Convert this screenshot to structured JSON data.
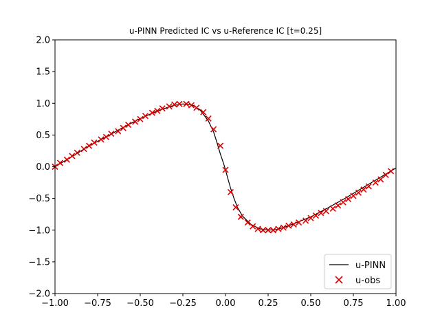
{
  "chart_data": {
    "type": "line",
    "title": "u-PINN Predicted IC vs u-Reference IC [t=0.25]",
    "xlabel": "",
    "ylabel": "",
    "xlim": [
      -1.0,
      1.0
    ],
    "ylim": [
      -2.0,
      2.0
    ],
    "x_ticks": [
      -1.0,
      -0.75,
      -0.5,
      -0.25,
      0.0,
      0.25,
      0.5,
      0.75,
      1.0
    ],
    "x_tick_labels": [
      "−1.00",
      "−0.75",
      "−0.50",
      "−0.25",
      "0.00",
      "0.25",
      "0.50",
      "0.75",
      "1.00"
    ],
    "y_ticks": [
      -2.0,
      -1.5,
      -1.0,
      -0.5,
      0.0,
      0.5,
      1.0,
      1.5,
      2.0
    ],
    "y_tick_labels": [
      "−2.0",
      "−1.5",
      "−1.0",
      "−0.5",
      "0.0",
      "0.5",
      "1.0",
      "1.5",
      "2.0"
    ],
    "grid": false,
    "legend_position": "lower-right",
    "series": [
      {
        "name": "u-PINN",
        "kind": "line",
        "color": "#000000",
        "x": [
          -1.0,
          -0.9,
          -0.8,
          -0.7,
          -0.6,
          -0.5,
          -0.4,
          -0.3,
          -0.25,
          -0.2,
          -0.15,
          -0.1,
          -0.07,
          -0.05,
          -0.03,
          -0.01,
          0.0,
          0.01,
          0.03,
          0.05,
          0.07,
          0.1,
          0.15,
          0.2,
          0.25,
          0.3,
          0.35,
          0.4,
          0.5,
          0.6,
          0.7,
          0.8,
          0.9,
          1.0
        ],
        "y": [
          0.0,
          0.16,
          0.33,
          0.47,
          0.62,
          0.76,
          0.88,
          0.97,
          0.99,
          0.98,
          0.9,
          0.72,
          0.55,
          0.38,
          0.2,
          0.04,
          -0.05,
          -0.15,
          -0.34,
          -0.5,
          -0.64,
          -0.78,
          -0.91,
          -0.98,
          -1.0,
          -0.99,
          -0.95,
          -0.9,
          -0.79,
          -0.65,
          -0.5,
          -0.34,
          -0.18,
          -0.02
        ]
      },
      {
        "name": "u-obs",
        "kind": "scatter",
        "marker": "x",
        "color": "#dd0000",
        "x": [
          -1.0,
          -0.97,
          -0.93,
          -0.9,
          -0.87,
          -0.83,
          -0.8,
          -0.77,
          -0.73,
          -0.7,
          -0.67,
          -0.63,
          -0.6,
          -0.57,
          -0.53,
          -0.5,
          -0.47,
          -0.43,
          -0.4,
          -0.37,
          -0.33,
          -0.3,
          -0.27,
          -0.23,
          -0.2,
          -0.17,
          -0.13,
          -0.1,
          -0.07,
          -0.03,
          0.0,
          0.03,
          0.06,
          0.09,
          0.13,
          0.16,
          0.19,
          0.22,
          0.25,
          0.28,
          0.31,
          0.34,
          0.37,
          0.4,
          0.43,
          0.47,
          0.5,
          0.53,
          0.56,
          0.59,
          0.63,
          0.66,
          0.69,
          0.72,
          0.75,
          0.78,
          0.81,
          0.84,
          0.88,
          0.91,
          0.94,
          0.97
        ],
        "y": [
          0.0,
          0.06,
          0.11,
          0.17,
          0.22,
          0.28,
          0.33,
          0.38,
          0.43,
          0.47,
          0.52,
          0.56,
          0.61,
          0.66,
          0.71,
          0.75,
          0.8,
          0.85,
          0.88,
          0.92,
          0.95,
          0.98,
          0.99,
          0.99,
          0.97,
          0.93,
          0.86,
          0.76,
          0.59,
          0.33,
          -0.05,
          -0.4,
          -0.64,
          -0.79,
          -0.88,
          -0.94,
          -0.98,
          -1.0,
          -1.0,
          -1.0,
          -0.98,
          -0.96,
          -0.93,
          -0.91,
          -0.88,
          -0.85,
          -0.81,
          -0.77,
          -0.73,
          -0.7,
          -0.66,
          -0.61,
          -0.56,
          -0.51,
          -0.46,
          -0.41,
          -0.36,
          -0.31,
          -0.25,
          -0.2,
          -0.13,
          -0.07
        ]
      }
    ]
  }
}
